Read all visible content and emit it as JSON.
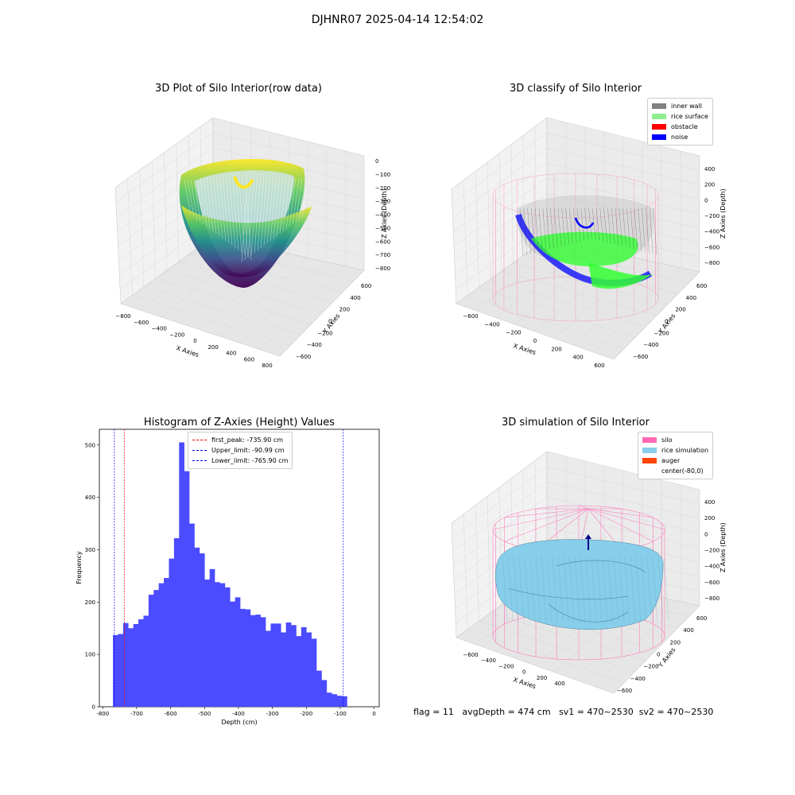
{
  "figure": {
    "suptitle": "DJHNR07 2025-04-14 12:54:02",
    "status": {
      "flag": "flag = 11",
      "avg_depth": "avgDepth = 474 cm",
      "sv1": "sv1 = 470~2530",
      "sv2": "sv2 = 470~2530"
    }
  },
  "colors": {
    "viridis": [
      "#440154",
      "#3b528b",
      "#21918c",
      "#5ec962",
      "#fde725"
    ],
    "inner_wall": "#808080",
    "rice_surface": "#90ee90",
    "obstacle": "#ff0000",
    "noise": "#0000ff",
    "silo": "#ff69b4",
    "rice_simulation": "#87ceeb",
    "auger": "#ff4500",
    "hist_bar": "#4b4bff",
    "peak_line": "#ff0000",
    "limit_line": "#0000ff"
  },
  "chart_data": [
    {
      "type": "scatter3d",
      "title": "3D Plot of Silo Interior(row data)",
      "xlabel": "X Axies",
      "ylabel": "Y Axies",
      "zlabel": "Z Axies (Depth)",
      "xticks": [
        "−800",
        "−600",
        "−400",
        "−200",
        "0",
        "200",
        "400",
        "600",
        "800"
      ],
      "yticks": [
        "−600",
        "−400",
        "−200",
        "0",
        "200",
        "400",
        "600"
      ],
      "zticks": [
        "0",
        "−100",
        "−200",
        "−300",
        "−400",
        "−500",
        "−600",
        "−700",
        "−800"
      ],
      "colormap": "viridis"
    },
    {
      "type": "scatter3d",
      "title": "3D classify of Silo Interior",
      "xlabel": "X Axies",
      "ylabel": "Y Axies",
      "zlabel": "Z Axies (Depth)",
      "xticks": [
        "−600",
        "−400",
        "−200",
        "0",
        "200",
        "400",
        "600"
      ],
      "yticks": [
        "−600",
        "−400",
        "−200",
        "0",
        "200",
        "400",
        "600"
      ],
      "zticks": [
        "400",
        "200",
        "0",
        "−200",
        "−400",
        "−600",
        "−800"
      ],
      "legend": [
        "inner wall",
        "rice surface",
        "obstacle",
        "noise"
      ],
      "legend_position": "top-right"
    },
    {
      "type": "bar",
      "title": "Histogram of Z-Axies (Height) Values",
      "xlabel": "Depth (cm)",
      "ylabel": "Frequency",
      "xlim": [
        -810,
        15
      ],
      "ylim": [
        0,
        530
      ],
      "xticks": [
        -800,
        -700,
        -600,
        -500,
        -400,
        -300,
        -200,
        -100,
        0
      ],
      "yticks": [
        0,
        100,
        200,
        300,
        400,
        500
      ],
      "bin_start": -770,
      "bin_width": 15,
      "values": [
        137,
        139,
        160,
        150,
        158,
        167,
        174,
        214,
        223,
        236,
        246,
        283,
        322,
        505,
        450,
        350,
        304,
        293,
        243,
        263,
        238,
        236,
        228,
        201,
        209,
        187,
        186,
        175,
        176,
        171,
        145,
        159,
        159,
        142,
        161,
        156,
        135,
        152,
        142,
        130,
        69,
        51,
        27,
        24,
        21,
        20
      ],
      "lines": [
        {
          "label": "first_peak: -735.90 cm",
          "x": -735.9,
          "color": "red"
        },
        {
          "label": "Upper_limit: -90.99 cm",
          "x": -90.99,
          "color": "blue"
        },
        {
          "label": "Lower_limit: -765.90 cm",
          "x": -765.9,
          "color": "blue"
        }
      ],
      "legend_position": "top-center"
    },
    {
      "type": "surface3d",
      "title": "3D simulation of Silo Interior",
      "xlabel": "X Axies",
      "ylabel": "Y Axies",
      "zlabel": "Z Axies (Depth)",
      "xticks": [
        "−600",
        "−400",
        "−200",
        "0",
        "200",
        "400"
      ],
      "yticks": [
        "−600",
        "−400",
        "−200",
        "0",
        "200",
        "400",
        "600"
      ],
      "zticks": [
        "400",
        "200",
        "0",
        "−200",
        "−400",
        "−600",
        "−800"
      ],
      "legend": [
        "silo",
        "rice simulation",
        "auger",
        "center(-80,0)"
      ],
      "legend_position": "top-right"
    }
  ]
}
